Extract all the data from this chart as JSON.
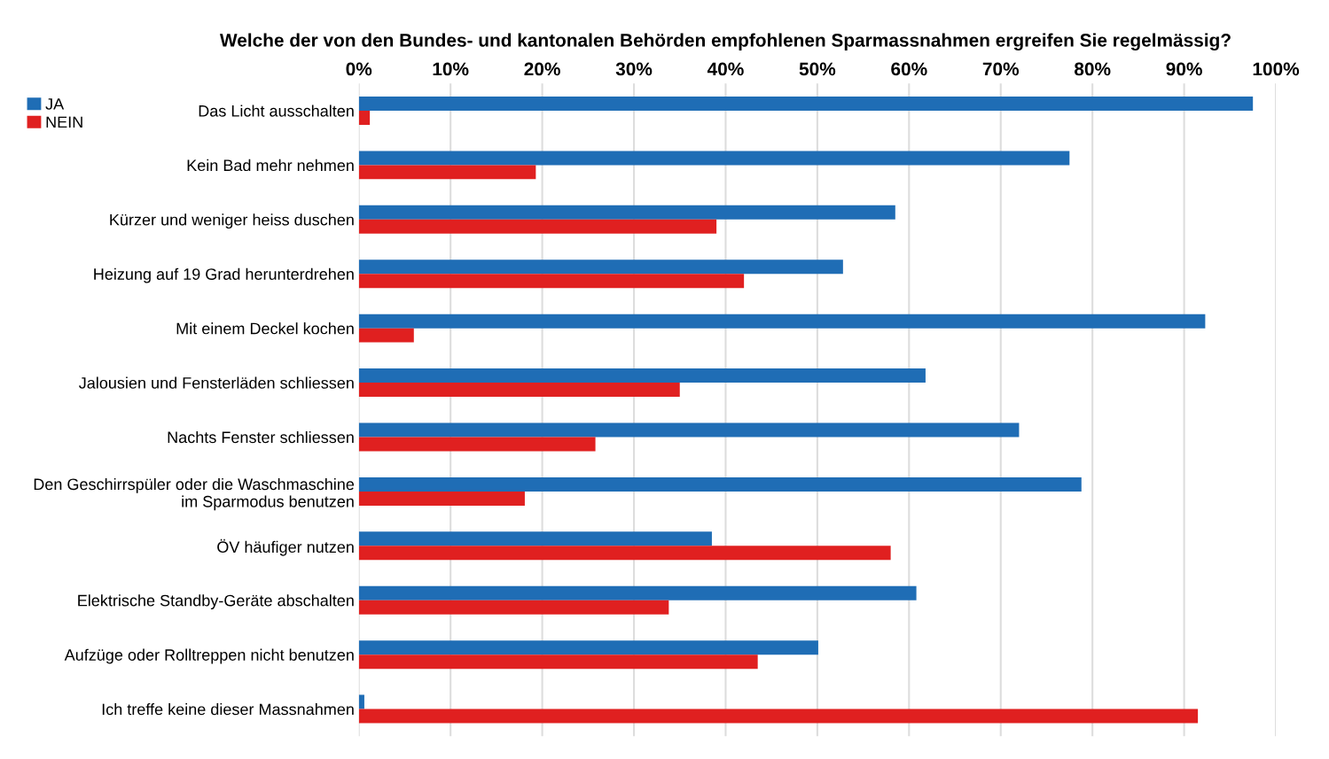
{
  "chart_data": {
    "type": "bar",
    "orientation": "horizontal",
    "title": "Welche der von den Bundes- und kantonalen Behörden empfohlenen Sparmassnahmen ergreifen Sie regelmässig?",
    "categories": [
      "Das Licht ausschalten",
      "Kein Bad mehr nehmen",
      "Kürzer und weniger heiss duschen",
      "Heizung auf 19 Grad herunterdrehen",
      "Mit einem Deckel kochen",
      "Jalousien und Fensterläden schliessen",
      "Nachts Fenster schliessen",
      "Den Geschirrspüler oder die Waschmaschine\nim Sparmodus benutzen",
      "ÖV häufiger nutzen",
      "Elektrische Standby-Geräte abschalten",
      "Aufzüge oder Rolltreppen nicht benutzen",
      "Ich treffe keine dieser Massnahmen"
    ],
    "series": [
      {
        "name": "JA",
        "color": "#1f6db5",
        "values": [
          97.5,
          77.5,
          58.5,
          52.8,
          92.3,
          61.8,
          72,
          78.8,
          38.5,
          60.8,
          50.1,
          0.6
        ]
      },
      {
        "name": "NEIN",
        "color": "#e02020",
        "values": [
          1.2,
          19.3,
          39,
          42,
          6,
          35,
          25.8,
          18.1,
          58,
          33.8,
          43.5,
          91.5
        ]
      }
    ],
    "xlim": [
      0,
      100
    ],
    "xticks": [
      {
        "value": 0,
        "label": "0%"
      },
      {
        "value": 10,
        "label": "10%"
      },
      {
        "value": 20,
        "label": "20%"
      },
      {
        "value": 30,
        "label": "30%"
      },
      {
        "value": 40,
        "label": "40%"
      },
      {
        "value": 50,
        "label": "50%"
      },
      {
        "value": 60,
        "label": "60%"
      },
      {
        "value": 70,
        "label": "70%"
      },
      {
        "value": 80,
        "label": "80%"
      },
      {
        "value": 90,
        "label": "90%"
      },
      {
        "value": 100,
        "label": "100%"
      }
    ],
    "grid": "x",
    "legend": "top left"
  }
}
